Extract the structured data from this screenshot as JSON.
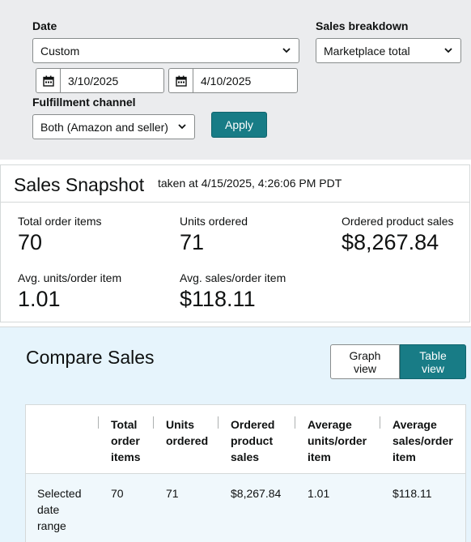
{
  "filters": {
    "date_label": "Date",
    "date_select": "Custom",
    "start_date": "3/10/2025",
    "end_date": "4/10/2025",
    "breakdown_label": "Sales breakdown",
    "breakdown_select": "Marketplace total",
    "fulfillment_label": "Fulfillment channel",
    "fulfillment_select": "Both (Amazon and seller)",
    "apply_label": "Apply"
  },
  "snapshot": {
    "title": "Sales Snapshot",
    "taken_at": "taken at 4/15/2025, 4:26:06 PM PDT",
    "metrics": [
      {
        "label": "Total order items",
        "value": "70"
      },
      {
        "label": "Units ordered",
        "value": "71"
      },
      {
        "label": "Ordered product sales",
        "value": "$8,267.84"
      },
      {
        "label": "Avg. units/order item",
        "value": "1.01"
      },
      {
        "label": "Avg. sales/order item",
        "value": "$118.11"
      }
    ]
  },
  "compare": {
    "title": "Compare Sales",
    "graph_view_1": "Graph",
    "graph_view_2": "view",
    "table_view_1": "Table",
    "table_view_2": "view",
    "columns": [
      [
        "Total",
        "order",
        "items"
      ],
      [
        "Units",
        "ordered"
      ],
      [
        "Ordered",
        "product",
        "sales"
      ],
      [
        "Average",
        "units/order",
        "item"
      ],
      [
        "Average",
        "sales/order",
        "item"
      ]
    ],
    "row": {
      "label": [
        "Selected",
        "date",
        "range"
      ],
      "values": [
        "70",
        "71",
        "$8,267.84",
        "1.01",
        "$118.11"
      ]
    }
  },
  "colors": {
    "accent": "#187c86",
    "panel_bg": "#ebecee",
    "compare_bg": "#e6f4fc"
  }
}
